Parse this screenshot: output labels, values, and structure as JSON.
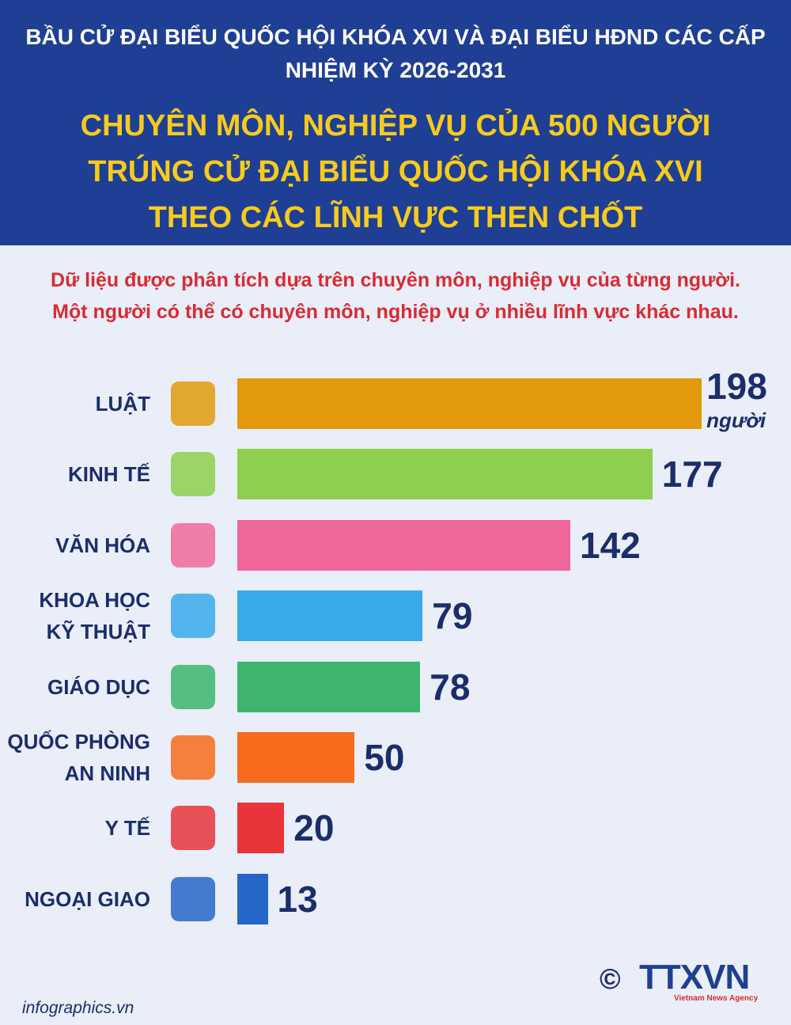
{
  "header": {
    "title": "BẦU CỬ ĐẠI BIỂU QUỐC HỘI KHÓA XVI VÀ ĐẠI BIỂU HĐND CÁC CẤP NHIỆM KỲ 2026-2031",
    "headline": "CHUYÊN MÔN, NGHIỆP VỤ CỦA 500 NGƯỜI TRÚNG CỬ ĐẠI BIỂU QUỐC HỘI KHÓA XVI THEO CÁC LĨNH VỰC THEN CHỐT"
  },
  "chart_data": {
    "type": "bar",
    "orientation": "horizontal",
    "subtitle": "Dữ liệu được phân tích dựa trên chuyên môn, nghiệp vụ của từng người. Một người có thể có chuyên môn, nghiệp vụ ở nhiều lĩnh vực khác nhau.",
    "categories": [
      "LUẬT",
      "KINH TẾ",
      "VĂN HÓA",
      "KHOA HỌC\nKỸ THUẬT",
      "GIÁO DỤC",
      "QUỐC PHÒNG\nAN NINH",
      "Y TẾ",
      "NGOẠI GIAO"
    ],
    "values": [
      198,
      177,
      142,
      79,
      78,
      50,
      20,
      13
    ],
    "colors": [
      "#e09a0c",
      "#8dcf4f",
      "#f0679b",
      "#3aa9ec",
      "#3db56e",
      "#f76b1c",
      "#e8343b",
      "#2566c8"
    ],
    "unit_label": "người"
  },
  "footer": {
    "source": "infographics.vn",
    "copyright": "©",
    "agency": "TTXVN",
    "agency_name": "Vietnam News Agency"
  }
}
